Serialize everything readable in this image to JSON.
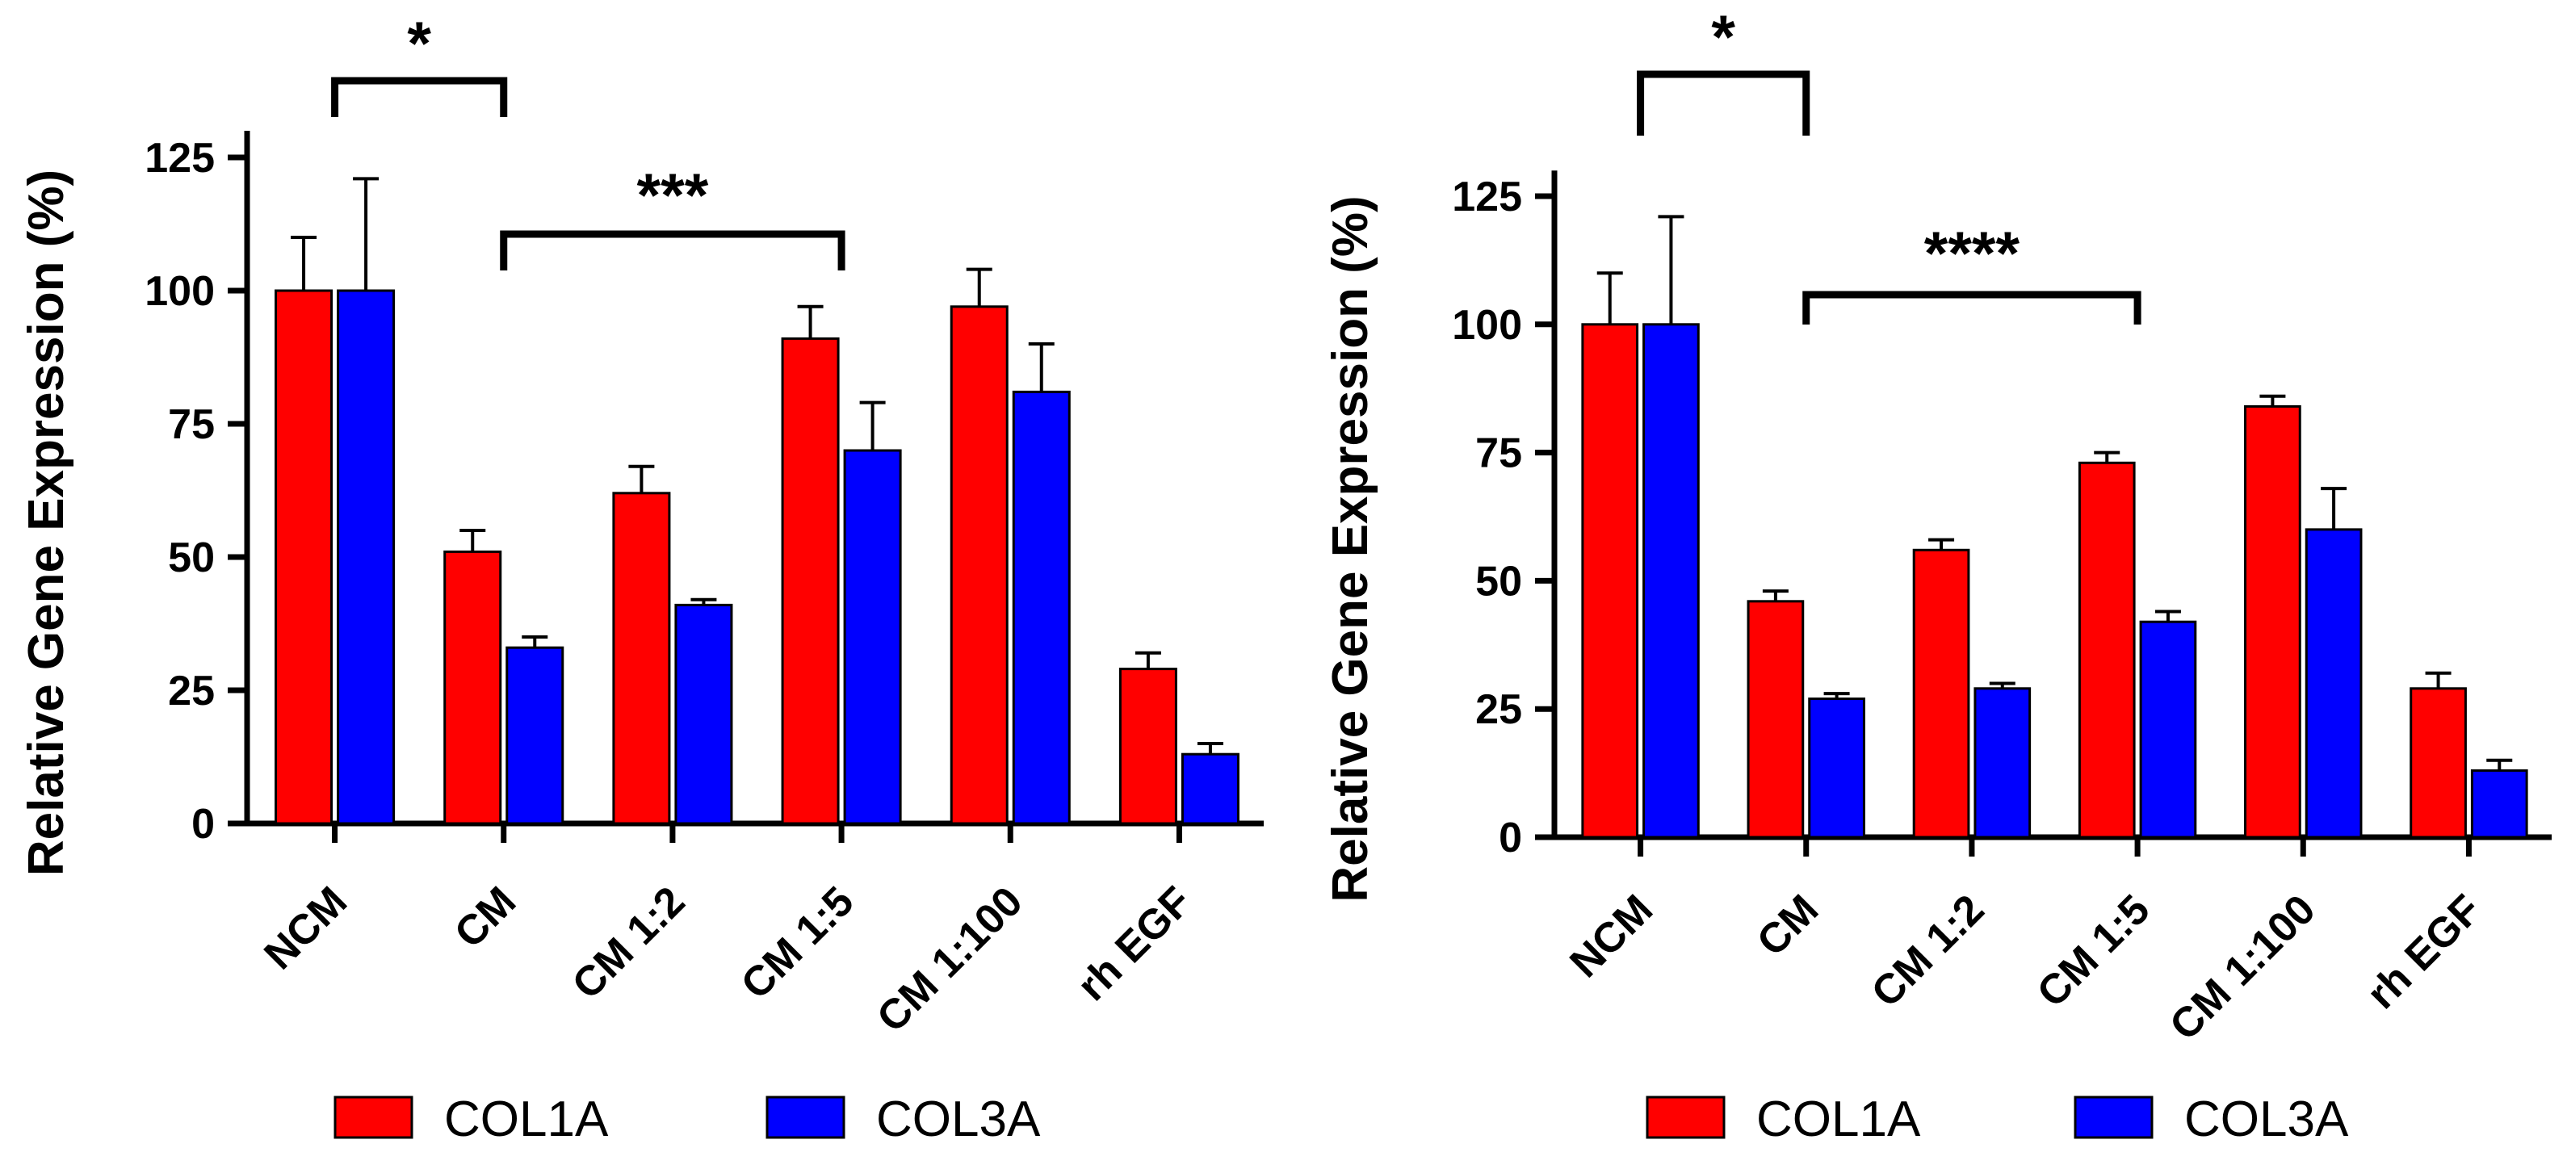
{
  "chart_data": [
    {
      "type": "bar",
      "ylabel": "Relative Gene  Expression (%)",
      "ylim": [
        0,
        130
      ],
      "yticks": [
        0,
        25,
        50,
        75,
        100,
        125
      ],
      "categories": [
        "NCM",
        "CM",
        "CM 1:2",
        "CM 1:5",
        "CM 1:100",
        "rh EGF"
      ],
      "series": [
        {
          "name": "COL1A",
          "color": "#ff0000",
          "values": [
            100,
            51,
            62,
            91,
            97,
            29
          ],
          "errors": [
            10,
            4,
            5,
            6,
            7,
            3
          ]
        },
        {
          "name": "COL3A",
          "color": "#0000ff",
          "values": [
            100,
            33,
            41,
            70,
            81,
            13
          ],
          "errors": [
            21,
            2,
            1,
            9,
            9,
            2
          ]
        }
      ],
      "significance": [
        {
          "from": "NCM",
          "to": "CM",
          "label": "*"
        },
        {
          "from": "CM",
          "to": "CM 1:5",
          "label": "***"
        }
      ]
    },
    {
      "type": "bar",
      "ylabel": "Relative Gene  Expression (%)",
      "ylim": [
        0,
        130
      ],
      "yticks": [
        0,
        25,
        50,
        75,
        100,
        125
      ],
      "categories": [
        "NCM",
        "CM",
        "CM 1:2",
        "CM 1:5",
        "CM 1:100",
        "rh EGF"
      ],
      "series": [
        {
          "name": "COL1A",
          "color": "#ff0000",
          "values": [
            100,
            46,
            56,
            73,
            84,
            29
          ],
          "errors": [
            10,
            2,
            2,
            2,
            2,
            3
          ]
        },
        {
          "name": "COL3A",
          "color": "#0000ff",
          "values": [
            100,
            27,
            29,
            42,
            60,
            13
          ],
          "errors": [
            21,
            1,
            1,
            2,
            8,
            2
          ]
        }
      ],
      "significance": [
        {
          "from": "NCM",
          "to": "CM",
          "label": "*"
        },
        {
          "from": "CM",
          "to": "CM 1:5",
          "label": "****"
        }
      ]
    }
  ]
}
